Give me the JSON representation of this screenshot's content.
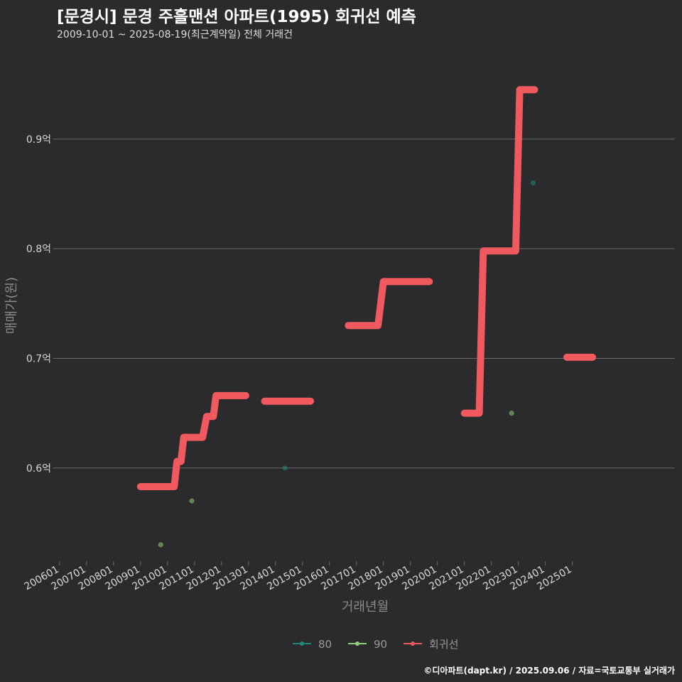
{
  "title": "[문경시] 문경 주흘맨션 아파트(1995) 회귀선 예측",
  "subtitle": "2009-10-01 ~ 2025-08-19(최근계약일) 전체 거래건",
  "caption": "©디아파트(dapt.kr) / 2025.09.06 / 자료=국토교통부 실거래가",
  "colors": {
    "background": "#2b2a2c",
    "grid": "#6a6a6a",
    "regression": "#f05a5f",
    "series80": "#1f8a7a",
    "series90": "#8fd17a"
  },
  "chart_data": {
    "type": "scatter",
    "xlabel": "거래년월",
    "ylabel": "매매가(원)",
    "x_ticks": [
      "200601",
      "200701",
      "200801",
      "200901",
      "201001",
      "201101",
      "201201",
      "201301",
      "201401",
      "201501",
      "201601",
      "201701",
      "201801",
      "201901",
      "202001",
      "202101",
      "202201",
      "202301",
      "202401",
      "202501"
    ],
    "x_range": [
      2005.9,
      2028.8
    ],
    "y_ticks": [
      0.6,
      0.7,
      0.8,
      0.9
    ],
    "y_tick_labels": [
      "0.6억",
      "0.7억",
      "0.8억",
      "0.9억"
    ],
    "y_range": [
      0.515,
      0.975
    ],
    "grid": true,
    "legend_position": "bottom",
    "legend": [
      {
        "name": "80",
        "color": "#1f8a7a"
      },
      {
        "name": "90",
        "color": "#8fd17a"
      },
      {
        "name": "회귀선",
        "color": "#f05a5f"
      }
    ],
    "series": [
      {
        "name": "80",
        "points": [
          [
            2014.35,
            0.6
          ],
          [
            2023.55,
            0.86
          ]
        ]
      },
      {
        "name": "90",
        "points": [
          [
            2009.75,
            0.53
          ],
          [
            2010.9,
            0.57
          ],
          [
            2022.75,
            0.65
          ]
        ]
      }
    ],
    "regression": [
      {
        "steps": [
          [
            2009.0,
            0.583
          ],
          [
            2010.25,
            0.583
          ],
          [
            2010.35,
            0.606
          ],
          [
            2010.5,
            0.606
          ],
          [
            2010.6,
            0.628
          ],
          [
            2011.3,
            0.628
          ],
          [
            2011.45,
            0.647
          ],
          [
            2011.7,
            0.647
          ],
          [
            2011.8,
            0.666
          ],
          [
            2012.9,
            0.666
          ]
        ]
      },
      {
        "steps": [
          [
            2013.6,
            0.661
          ],
          [
            2015.3,
            0.661
          ]
        ]
      },
      {
        "steps": [
          [
            2016.7,
            0.73
          ],
          [
            2017.8,
            0.73
          ],
          [
            2018.0,
            0.77
          ],
          [
            2019.7,
            0.77
          ]
        ]
      },
      {
        "steps": [
          [
            2021.0,
            0.65
          ],
          [
            2021.55,
            0.65
          ],
          [
            2021.7,
            0.798
          ],
          [
            2022.9,
            0.798
          ],
          [
            2023.05,
            0.945
          ],
          [
            2023.6,
            0.945
          ]
        ]
      },
      {
        "steps": [
          [
            2024.8,
            0.701
          ],
          [
            2025.75,
            0.701
          ]
        ]
      }
    ]
  }
}
